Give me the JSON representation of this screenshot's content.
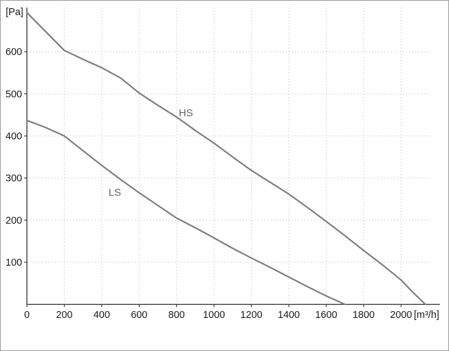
{
  "chart_data": {
    "type": "line",
    "title": "",
    "xlabel": "[m³/h]",
    "ylabel": "[Pa]",
    "xlim": [
      0,
      2160
    ],
    "ylim": [
      0,
      705
    ],
    "x_ticks": [
      0,
      200,
      400,
      600,
      800,
      1000,
      1200,
      1400,
      1600,
      1800,
      2000
    ],
    "y_ticks": [
      100,
      200,
      300,
      400,
      500,
      600
    ],
    "grid": "dotted",
    "legend_position": "inline-annotations",
    "colors": {
      "curve": "#7d7d7d",
      "grid": "#c9c9c9",
      "axis": "#3c3c3c",
      "text": "#1a1a1a",
      "annotation": "#636363"
    },
    "series": [
      {
        "name": "HS",
        "label_pos": {
          "x": 850,
          "y": 447
        },
        "points": [
          [
            0,
            693
          ],
          [
            100,
            648
          ],
          [
            200,
            603
          ],
          [
            300,
            582
          ],
          [
            400,
            562
          ],
          [
            500,
            538
          ],
          [
            600,
            502
          ],
          [
            700,
            473
          ],
          [
            800,
            445
          ],
          [
            900,
            413
          ],
          [
            1000,
            383
          ],
          [
            1100,
            350
          ],
          [
            1200,
            318
          ],
          [
            1300,
            290
          ],
          [
            1400,
            262
          ],
          [
            1500,
            230
          ],
          [
            1600,
            197
          ],
          [
            1700,
            163
          ],
          [
            1800,
            128
          ],
          [
            1900,
            94
          ],
          [
            2000,
            58
          ],
          [
            2060,
            30
          ],
          [
            2130,
            0
          ]
        ]
      },
      {
        "name": "LS",
        "label_pos": {
          "x": 470,
          "y": 258
        },
        "points": [
          [
            0,
            437
          ],
          [
            100,
            420
          ],
          [
            200,
            400
          ],
          [
            300,
            365
          ],
          [
            400,
            330
          ],
          [
            500,
            297
          ],
          [
            600,
            265
          ],
          [
            700,
            235
          ],
          [
            800,
            205
          ],
          [
            900,
            182
          ],
          [
            1000,
            158
          ],
          [
            1100,
            133
          ],
          [
            1200,
            110
          ],
          [
            1300,
            88
          ],
          [
            1400,
            65
          ],
          [
            1500,
            42
          ],
          [
            1600,
            20
          ],
          [
            1700,
            0
          ]
        ]
      }
    ]
  }
}
